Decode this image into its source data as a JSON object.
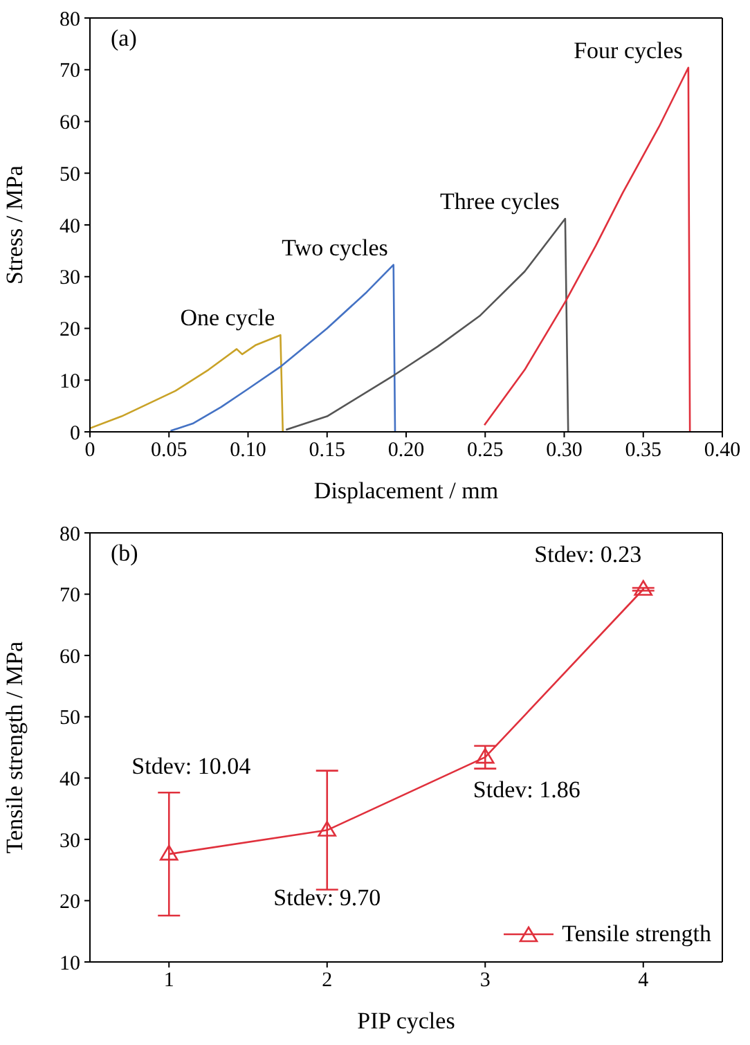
{
  "chart_data": [
    {
      "type": "line",
      "xlabel": "Displacement / mm",
      "ylabel": "Stress / MPa",
      "annotations": [
        "(a)"
      ],
      "xlim": [
        0,
        0.4
      ],
      "xticks": [
        {
          "value": 0,
          "label": "0"
        },
        0.05,
        {
          "value": 0.1,
          "label": "0.10"
        },
        0.15,
        {
          "value": 0.2,
          "label": "0.20"
        },
        0.25,
        {
          "value": 0.3,
          "label": "0.30"
        },
        0.35,
        {
          "value": 0.4,
          "label": "0.40"
        }
      ],
      "ylim": [
        0,
        80
      ],
      "yticks": [
        0,
        10,
        20,
        30,
        40,
        50,
        60,
        70,
        80
      ],
      "legend": false,
      "marker": "none",
      "line_style": "solid",
      "series": [
        {
          "name": "One cycle",
          "color": "#c9a227",
          "x": [
            0,
            0.02,
            0.054,
            0.075,
            0.0928,
            0.0963,
            0.105,
            0.1205,
            0.122
          ],
          "values": [
            0.7,
            3,
            7.9,
            12,
            16.0,
            15.0,
            16.8,
            18.7,
            0
          ]
        },
        {
          "name": "Two cycles",
          "color": "#4472c4",
          "x": [
            0.051,
            0.065,
            0.083,
            0.1,
            0.121,
            0.15,
            0.175,
            0.192,
            0.193
          ],
          "values": [
            0.2,
            1.6,
            4.8,
            8.3,
            12.7,
            20,
            27,
            32.3,
            0
          ]
        },
        {
          "name": "Three cycles",
          "color": "#555555",
          "x": [
            0.124,
            0.15,
            0.1926,
            0.22,
            0.2465,
            0.275,
            0.3006,
            0.3025
          ],
          "values": [
            0.4,
            3,
            11.0,
            16.5,
            22.4,
            31,
            41.2,
            0
          ]
        },
        {
          "name": "Four cycles",
          "color": "#e0303c",
          "x": [
            0.2495,
            0.275,
            0.3006,
            0.32,
            0.337,
            0.36,
            0.3785,
            0.3795
          ],
          "values": [
            1.3,
            12,
            25.1,
            36,
            46.2,
            59,
            70.4,
            0
          ]
        }
      ]
    },
    {
      "type": "line",
      "xlabel": "PIP cycles",
      "ylabel": "Tensile strength / MPa",
      "xlim": [
        0.5,
        4.5
      ],
      "xticks": [
        1,
        2,
        3,
        4
      ],
      "ylim": [
        10,
        80
      ],
      "yticks": [
        10,
        20,
        30,
        40,
        50,
        60,
        70,
        80
      ],
      "legend": "bottom right",
      "marker": "triangle",
      "line_style": "solid",
      "annotations": [
        "(b)",
        {
          "text": "Stdev: 10.04",
          "x": 1,
          "y": 37.6
        },
        {
          "text": "Stdev: 9.70",
          "x": 2,
          "y": 31.5
        },
        {
          "text": "Stdev: 1.86",
          "x": 3,
          "y": 43.4
        },
        {
          "text": "Stdev: 0.23",
          "x": 4,
          "y": 70.8
        }
      ],
      "series": [
        {
          "name": "Tensile strength",
          "color": "#e0303c",
          "x": [
            1,
            2,
            3,
            4
          ],
          "values": [
            27.6,
            31.5,
            43.4,
            70.8
          ],
          "errors": [
            10.04,
            9.7,
            1.86,
            0.23
          ]
        }
      ]
    }
  ]
}
